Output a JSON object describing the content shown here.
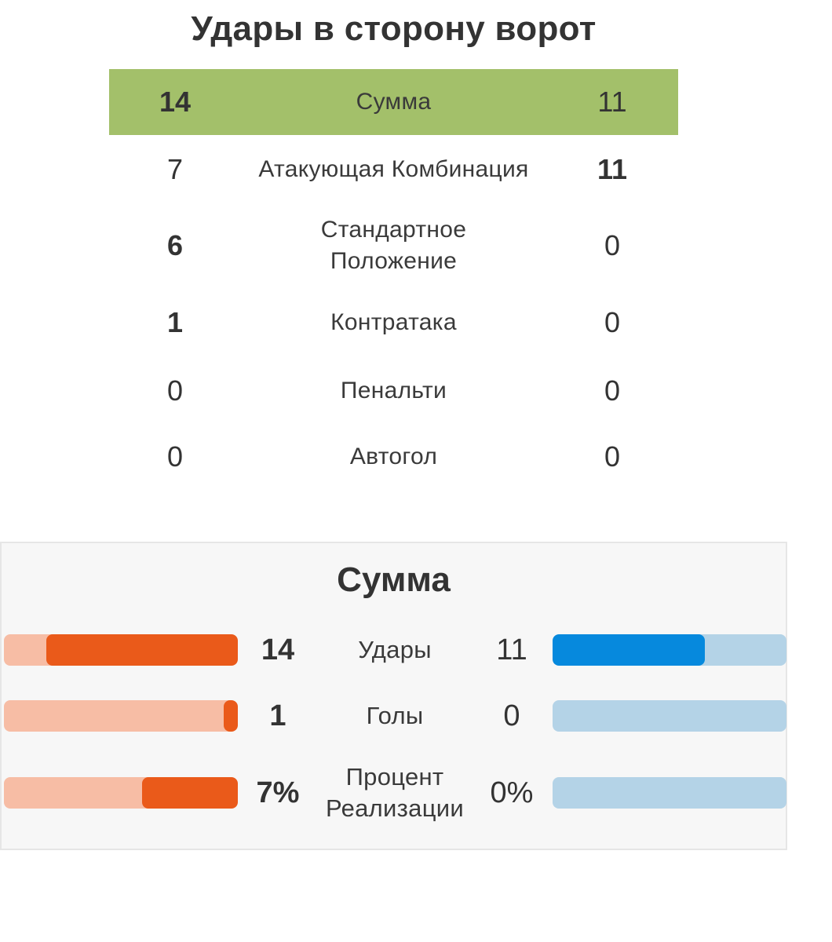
{
  "title": "Удары в сторону ворот",
  "shot_types": {
    "rows": [
      {
        "label": "Сумма",
        "home": "14",
        "away": "11"
      },
      {
        "label": "Атакующая Комбинация",
        "home": "7",
        "away": "11"
      },
      {
        "label": "Стандартное Положение",
        "home": "6",
        "away": "0"
      },
      {
        "label": "Контратака",
        "home": "1",
        "away": "0"
      },
      {
        "label": "Пенальти",
        "home": "0",
        "away": "0"
      },
      {
        "label": "Автогол",
        "home": "0",
        "away": "0"
      }
    ]
  },
  "summary": {
    "title": "Сумма",
    "rows": [
      {
        "label": "Удары",
        "home": "14",
        "away": "11",
        "home_fill": 0.82,
        "away_fill": 0.65
      },
      {
        "label": "Голы",
        "home": "1",
        "away": "0",
        "home_fill": 0.06,
        "away_fill": 0.0
      },
      {
        "label": "Процент Реализации",
        "home": "7%",
        "away": "0%",
        "home_fill": 0.41,
        "away_fill": 0.0
      }
    ]
  },
  "colors": {
    "highlight_row": "#a3c06a",
    "home_fill": "#ea5a1a",
    "home_track": "#f7bda5",
    "away_fill": "#0689dd",
    "away_track": "#b4d3e7"
  }
}
